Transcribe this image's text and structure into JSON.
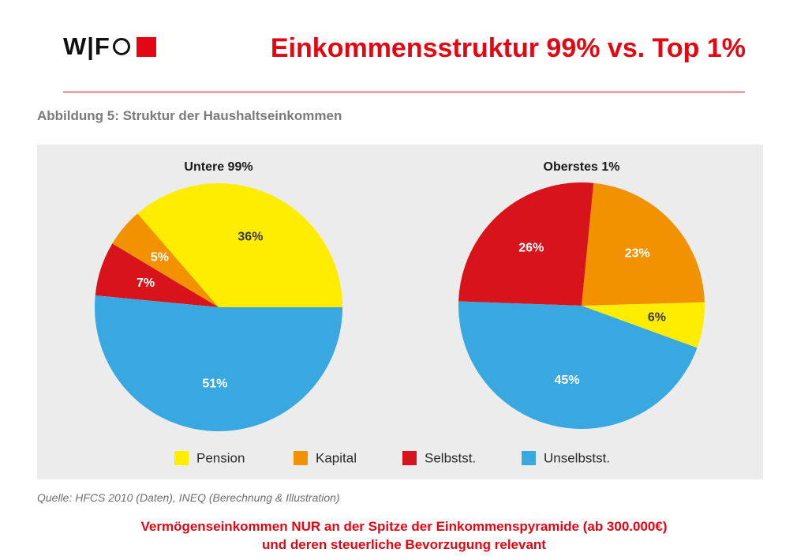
{
  "header": {
    "logo_text": "W|F",
    "title": "Einkommensstruktur  99% vs. Top 1%"
  },
  "figure": {
    "caption": "Abbildung 5: Struktur der Haushaltseinkommen",
    "source": "Quelle: HFCS 2010 (Daten), INEQ (Berechnung & Illustration)"
  },
  "colors": {
    "accent": "#e30613",
    "panel": "#ececec",
    "pension": "#ffed00",
    "kapital": "#f39200",
    "selbstst": "#d7141b",
    "unselbstst": "#3aa8e0"
  },
  "chart_data": [
    {
      "type": "pie",
      "title": "Untere 99%",
      "categories": [
        "Pension",
        "Kapital",
        "Selbstst.",
        "Unselbstst."
      ],
      "values": [
        36,
        5,
        7,
        51
      ],
      "labels": [
        "36%",
        "5%",
        "7%",
        "51%"
      ],
      "colors": [
        "#ffed00",
        "#f39200",
        "#d7141b",
        "#3aa8e0"
      ],
      "start_angle_deg": 0,
      "legend": "bottom"
    },
    {
      "type": "pie",
      "title": "Oberstes 1%",
      "categories": [
        "Pension",
        "Kapital",
        "Selbstst.",
        "Unselbstst."
      ],
      "values": [
        6,
        23,
        26,
        45
      ],
      "labels": [
        "6%",
        "23%",
        "26%",
        "45%"
      ],
      "colors": [
        "#ffed00",
        "#f39200",
        "#d7141b",
        "#3aa8e0"
      ],
      "start_angle_deg": -20,
      "legend": "bottom"
    }
  ],
  "legend": {
    "items": [
      {
        "label": "Pension",
        "color": "#ffed00"
      },
      {
        "label": "Kapital",
        "color": "#f39200"
      },
      {
        "label": "Selbstst.",
        "color": "#d7141b"
      },
      {
        "label": "Unselbstst.",
        "color": "#3aa8e0"
      }
    ]
  },
  "footnote": {
    "line1": "Vermögenseinkommen NUR an der Spitze der Einkommenspyramide (ab 300.000€)",
    "line2": "und deren steuerliche Bevorzugung relevant"
  }
}
